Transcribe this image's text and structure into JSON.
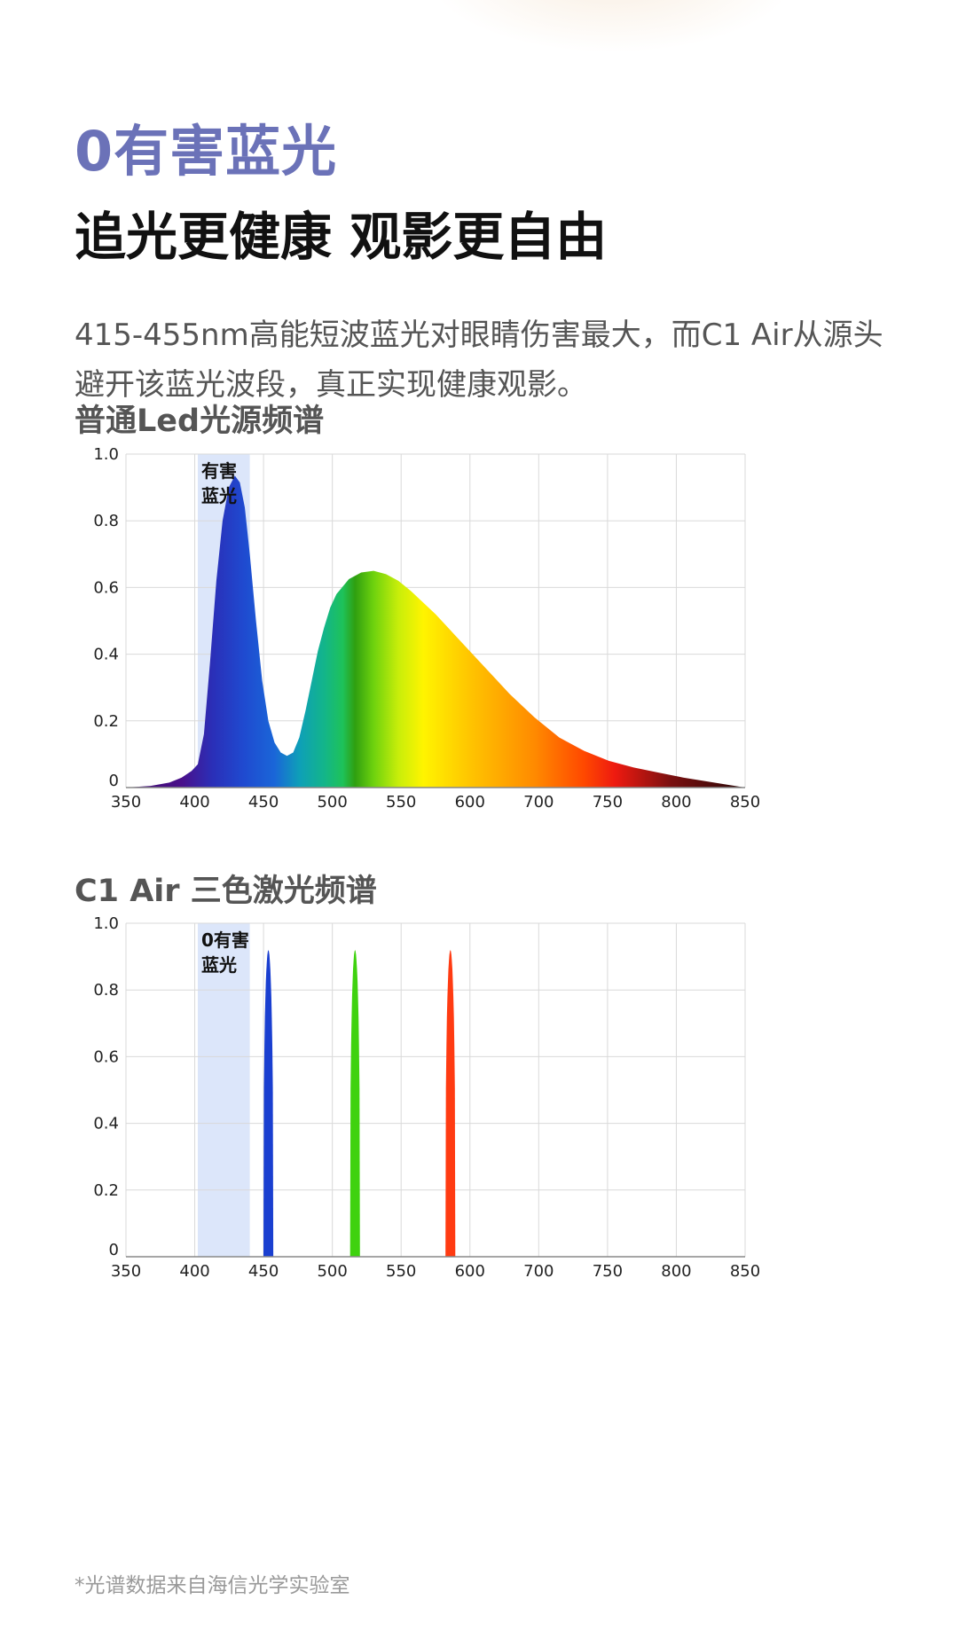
{
  "headline": {
    "text": "0有害蓝光",
    "color": "#6b72b8"
  },
  "subhead": "追光更健康 观影更自由",
  "description": "415-455nm高能短波蓝光对眼睛伤害最大，而C1 Air从源头避开该蓝光波段，真正实现健康观影。",
  "footnote": "*光谱数据来自海信光学实验室",
  "chart_data": [
    {
      "type": "area",
      "title": "普通Led光源频谱",
      "xlim": [
        350,
        850
      ],
      "ylim": [
        0,
        1
      ],
      "x_ticks": [
        "350",
        "400",
        "450",
        "500",
        "550",
        "600",
        "700",
        "750",
        "800",
        "850"
      ],
      "y_ticks": [
        "0",
        "0.2",
        "0.4",
        "0.6",
        "0.8",
        "1.0"
      ],
      "grid": true,
      "fill": "visible-spectrum-gradient",
      "highlight_band": {
        "x": [
          408,
          450
        ],
        "label_lines": [
          "有害",
          "蓝光"
        ],
        "color": "#dce6fa"
      },
      "series": [
        {
          "x": [
            350,
            370,
            385,
            395,
            403,
            408,
            413,
            418,
            423,
            428,
            433,
            438,
            442,
            446,
            450,
            455,
            460,
            465,
            470,
            475,
            480,
            485,
            490,
            495,
            500,
            505,
            510,
            515,
            520,
            530,
            540,
            550,
            560,
            570,
            580,
            600,
            620,
            640,
            660,
            680,
            700,
            720,
            740,
            760,
            780,
            800,
            820,
            840,
            850
          ],
          "y": [
            0,
            0.005,
            0.015,
            0.03,
            0.05,
            0.07,
            0.16,
            0.38,
            0.62,
            0.8,
            0.9,
            0.935,
            0.915,
            0.84,
            0.7,
            0.5,
            0.32,
            0.2,
            0.135,
            0.105,
            0.095,
            0.105,
            0.15,
            0.23,
            0.32,
            0.41,
            0.48,
            0.54,
            0.58,
            0.625,
            0.645,
            0.65,
            0.64,
            0.62,
            0.59,
            0.52,
            0.44,
            0.36,
            0.28,
            0.21,
            0.15,
            0.11,
            0.08,
            0.06,
            0.045,
            0.03,
            0.018,
            0.006,
            0
          ]
        }
      ]
    },
    {
      "type": "area",
      "title": "C1 Air 三色激光频谱",
      "xlim": [
        350,
        850
      ],
      "ylim": [
        0,
        1
      ],
      "x_ticks": [
        "350",
        "400",
        "450",
        "500",
        "550",
        "600",
        "700",
        "750",
        "800",
        "850"
      ],
      "y_ticks": [
        "0",
        "0.2",
        "0.4",
        "0.6",
        "0.8",
        "1.0"
      ],
      "grid": true,
      "highlight_band": {
        "x": [
          408,
          450
        ],
        "label_lines": [
          "0有害",
          "蓝光"
        ],
        "color": "#dce6fa"
      },
      "series": [
        {
          "center": 465,
          "width": 8,
          "peak": 0.92,
          "color": "#1a3fd0"
        },
        {
          "center": 535,
          "width": 8,
          "peak": 0.92,
          "color": "#3fd20f"
        },
        {
          "center": 612,
          "width": 8,
          "peak": 0.92,
          "color": "#ff3b12"
        }
      ]
    }
  ]
}
